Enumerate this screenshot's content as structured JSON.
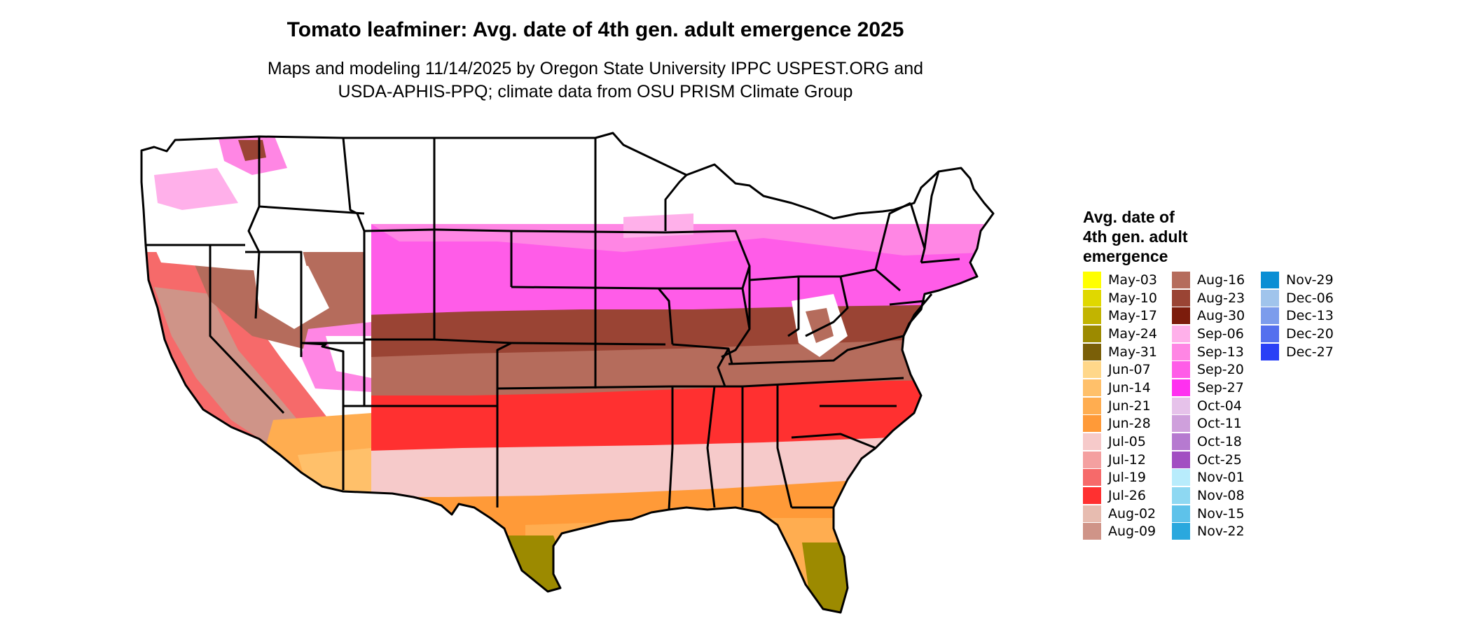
{
  "title": "Tomato leafminer: Avg. date of 4th gen. adult emergence 2025",
  "subtitle_lines": [
    "Maps and modeling 11/14/2025 by Oregon State University IPPC USPEST.ORG and",
    "USDA-APHIS-PPQ; climate data from OSU PRISM Climate Group"
  ],
  "legend": {
    "title_lines": [
      "Avg. date of",
      "4th gen. adult",
      "emergence"
    ],
    "columns": [
      [
        {
          "label": "May-03",
          "color": "#ffff00"
        },
        {
          "label": "May-10",
          "color": "#e0d800"
        },
        {
          "label": "May-17",
          "color": "#c2b400"
        },
        {
          "label": "May-24",
          "color": "#9c8a00"
        },
        {
          "label": "May-31",
          "color": "#7a5f08"
        },
        {
          "label": "Jun-07",
          "color": "#ffd78a"
        },
        {
          "label": "Jun-14",
          "color": "#ffc06a"
        },
        {
          "label": "Jun-21",
          "color": "#ffad50"
        },
        {
          "label": "Jun-28",
          "color": "#ff9a38"
        },
        {
          "label": "Jul-05",
          "color": "#f6caca"
        },
        {
          "label": "Jul-12",
          "color": "#f4a0a0"
        },
        {
          "label": "Jul-19",
          "color": "#f66a6a"
        },
        {
          "label": "Jul-26",
          "color": "#ff3030"
        },
        {
          "label": "Aug-02",
          "color": "#e7bcb0"
        },
        {
          "label": "Aug-09",
          "color": "#cf9488"
        }
      ],
      [
        {
          "label": "Aug-16",
          "color": "#b56c5c"
        },
        {
          "label": "Aug-23",
          "color": "#9a4434"
        },
        {
          "label": "Aug-30",
          "color": "#7c1c0c"
        },
        {
          "label": "Sep-06",
          "color": "#ffb0ea"
        },
        {
          "label": "Sep-13",
          "color": "#ff86e4"
        },
        {
          "label": "Sep-20",
          "color": "#ff5ce8"
        },
        {
          "label": "Sep-27",
          "color": "#ff30f0"
        },
        {
          "label": "Oct-04",
          "color": "#e6c2ea"
        },
        {
          "label": "Oct-11",
          "color": "#cfa0dc"
        },
        {
          "label": "Oct-18",
          "color": "#b67ad0"
        },
        {
          "label": "Oct-25",
          "color": "#a24ec2"
        },
        {
          "label": "Nov-01",
          "color": "#b8ecfc"
        },
        {
          "label": "Nov-08",
          "color": "#8ed8f2"
        },
        {
          "label": "Nov-15",
          "color": "#5ec2ea"
        },
        {
          "label": "Nov-22",
          "color": "#2aa8de"
        }
      ],
      [
        {
          "label": "Nov-29",
          "color": "#0a8ed4"
        },
        {
          "label": "Dec-06",
          "color": "#a0c4ec"
        },
        {
          "label": "Dec-13",
          "color": "#7c9cec"
        },
        {
          "label": "Dec-20",
          "color": "#5470ee"
        },
        {
          "label": "Dec-27",
          "color": "#2a40f6"
        }
      ]
    ]
  }
}
